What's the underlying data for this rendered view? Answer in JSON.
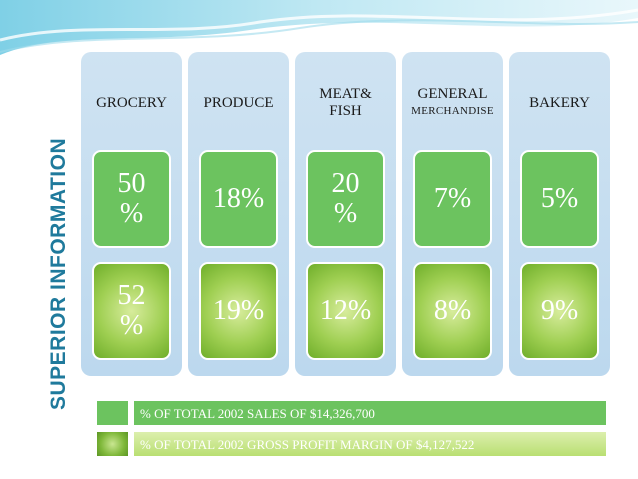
{
  "side_title": "SUPERIOR  INFORMATION",
  "columns": [
    {
      "title_lines": [
        "GROCERY"
      ],
      "sub": "",
      "sales": "50\n%",
      "margin": "52\n%"
    },
    {
      "title_lines": [
        "PRODUCE"
      ],
      "sub": "",
      "sales": "18%",
      "margin": "19%"
    },
    {
      "title_lines": [
        "MEAT&",
        "FISH"
      ],
      "sub": "",
      "sales": "20\n%",
      "margin": "12%"
    },
    {
      "title_lines": [
        "GENERAL"
      ],
      "sub": "MERCHANDISE",
      "sales": "7%",
      "margin": "8%"
    },
    {
      "title_lines": [
        "BAKERY"
      ],
      "sub": "",
      "sales": "5%",
      "margin": "9%"
    }
  ],
  "legend": {
    "sales_label": "% OF TOTAL 2002 SALES OF $14,326,700",
    "margin_label": "% OF TOTAL 2002 GROSS PROFIT MARGIN OF $4,127,522"
  },
  "colors": {
    "title": "#1f7a9c",
    "column_bg": "#c4dcef",
    "sales_green": "#6cc35f",
    "margin_green": "#9fcf52"
  }
}
